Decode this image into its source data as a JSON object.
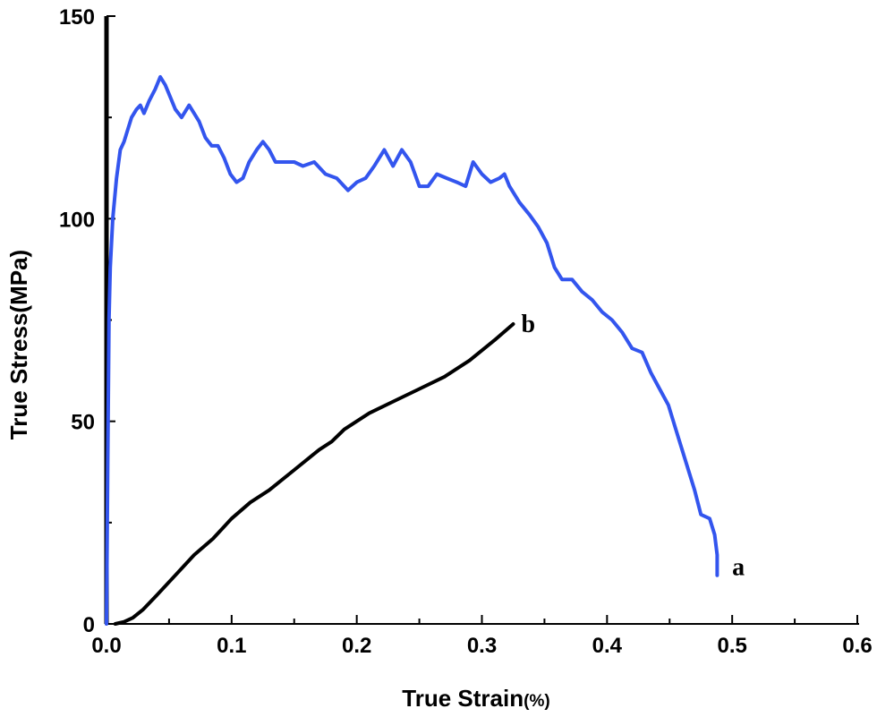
{
  "chart_data": {
    "type": "line",
    "xlabel": "True Strain",
    "xlabel_unit": "(%)",
    "ylabel": "True Stress(MPa)",
    "xlim": [
      0.0,
      0.6
    ],
    "ylim": [
      0,
      150
    ],
    "x_ticks": [
      "0.0",
      "0.1",
      "0.2",
      "0.3",
      "0.4",
      "0.5",
      "0.6"
    ],
    "y_ticks": [
      "0",
      "50",
      "100",
      "150"
    ],
    "grid": false,
    "series": [
      {
        "name": "a",
        "color": "#3355ee",
        "points": [
          [
            0.0,
            0
          ],
          [
            0.001,
            40
          ],
          [
            0.002,
            75
          ],
          [
            0.003,
            88
          ],
          [
            0.005,
            100
          ],
          [
            0.008,
            110
          ],
          [
            0.011,
            117
          ],
          [
            0.014,
            119
          ],
          [
            0.017,
            122
          ],
          [
            0.02,
            125
          ],
          [
            0.024,
            127
          ],
          [
            0.027,
            128
          ],
          [
            0.03,
            126
          ],
          [
            0.034,
            129
          ],
          [
            0.039,
            132
          ],
          [
            0.043,
            135
          ],
          [
            0.047,
            133
          ],
          [
            0.051,
            130
          ],
          [
            0.055,
            127
          ],
          [
            0.06,
            125
          ],
          [
            0.066,
            128
          ],
          [
            0.07,
            126
          ],
          [
            0.074,
            124
          ],
          [
            0.079,
            120
          ],
          [
            0.084,
            118
          ],
          [
            0.089,
            118
          ],
          [
            0.094,
            115
          ],
          [
            0.099,
            111
          ],
          [
            0.104,
            109
          ],
          [
            0.109,
            110
          ],
          [
            0.114,
            114
          ],
          [
            0.12,
            117
          ],
          [
            0.125,
            119
          ],
          [
            0.13,
            117
          ],
          [
            0.135,
            114
          ],
          [
            0.142,
            114
          ],
          [
            0.15,
            114
          ],
          [
            0.157,
            113
          ],
          [
            0.166,
            114
          ],
          [
            0.175,
            111
          ],
          [
            0.184,
            110
          ],
          [
            0.193,
            107
          ],
          [
            0.2,
            109
          ],
          [
            0.207,
            110
          ],
          [
            0.214,
            113
          ],
          [
            0.222,
            117
          ],
          [
            0.229,
            113
          ],
          [
            0.236,
            117
          ],
          [
            0.243,
            114
          ],
          [
            0.25,
            108
          ],
          [
            0.257,
            108
          ],
          [
            0.264,
            111
          ],
          [
            0.272,
            110
          ],
          [
            0.28,
            109
          ],
          [
            0.287,
            108
          ],
          [
            0.293,
            114
          ],
          [
            0.3,
            111
          ],
          [
            0.307,
            109
          ],
          [
            0.314,
            110
          ],
          [
            0.318,
            111
          ],
          [
            0.322,
            108
          ],
          [
            0.33,
            104
          ],
          [
            0.338,
            101
          ],
          [
            0.345,
            98
          ],
          [
            0.352,
            94
          ],
          [
            0.358,
            88
          ],
          [
            0.364,
            85
          ],
          [
            0.372,
            85
          ],
          [
            0.38,
            82
          ],
          [
            0.388,
            80
          ],
          [
            0.396,
            77
          ],
          [
            0.404,
            75
          ],
          [
            0.412,
            72
          ],
          [
            0.42,
            68
          ],
          [
            0.428,
            67
          ],
          [
            0.435,
            62
          ],
          [
            0.442,
            58
          ],
          [
            0.449,
            54
          ],
          [
            0.455,
            48
          ],
          [
            0.46,
            43
          ],
          [
            0.465,
            38
          ],
          [
            0.47,
            33
          ],
          [
            0.475,
            27
          ],
          [
            0.482,
            26
          ],
          [
            0.486,
            22
          ],
          [
            0.488,
            17
          ],
          [
            0.488,
            12
          ]
        ]
      },
      {
        "name": "b",
        "color": "#000000",
        "points": [
          [
            0.007,
            0
          ],
          [
            0.014,
            0.5
          ],
          [
            0.021,
            1.5
          ],
          [
            0.029,
            3.5
          ],
          [
            0.04,
            7
          ],
          [
            0.055,
            12
          ],
          [
            0.07,
            17
          ],
          [
            0.085,
            21
          ],
          [
            0.1,
            26
          ],
          [
            0.115,
            30
          ],
          [
            0.13,
            33
          ],
          [
            0.15,
            38
          ],
          [
            0.17,
            43
          ],
          [
            0.18,
            45
          ],
          [
            0.19,
            48
          ],
          [
            0.21,
            52
          ],
          [
            0.23,
            55
          ],
          [
            0.25,
            58
          ],
          [
            0.27,
            61
          ],
          [
            0.29,
            65
          ],
          [
            0.31,
            70
          ],
          [
            0.325,
            74
          ]
        ]
      }
    ],
    "annotations": [
      {
        "text": "a",
        "x": 0.505,
        "y": 14
      },
      {
        "text": "b",
        "x": 0.337,
        "y": 74
      }
    ]
  }
}
